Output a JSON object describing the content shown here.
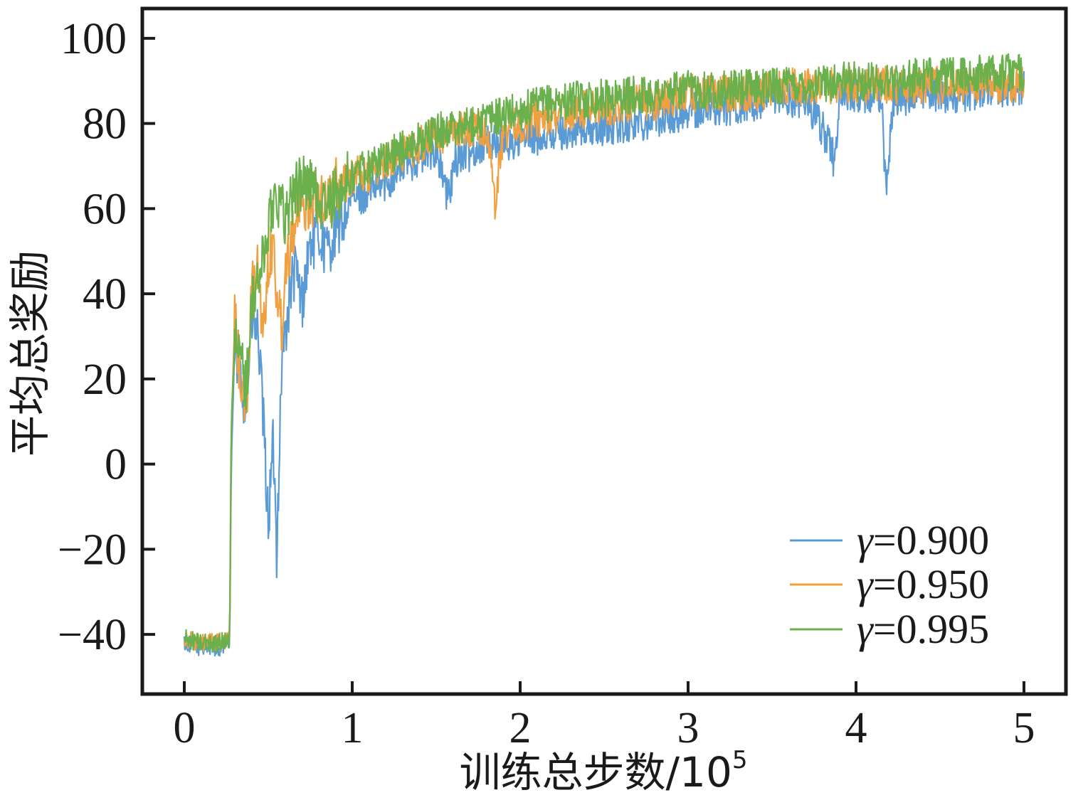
{
  "chart_data": {
    "type": "line",
    "xlabel": "训练总步数/10",
    "xlabel_exponent": "5",
    "ylabel": "平均总奖励",
    "xlim": [
      -0.25,
      5.25
    ],
    "ylim": [
      -54,
      107
    ],
    "x_ticks": [
      0,
      1,
      2,
      3,
      4,
      5
    ],
    "y_ticks": [
      -40,
      -20,
      0,
      20,
      40,
      60,
      80,
      100
    ],
    "x_tick_labels": [
      "0",
      "1",
      "2",
      "3",
      "4",
      "5"
    ],
    "y_tick_labels": [
      "−40",
      "−20",
      "0",
      "20",
      "40",
      "60",
      "80",
      "100"
    ],
    "grid": false,
    "legend_position": "bottom-right",
    "legend_gamma_symbol": "γ",
    "series": [
      {
        "name": "γ=0.900",
        "gamma_value": "=0.900",
        "color": "#5b9bd5",
        "x": [
          0,
          0.1,
          0.2,
          0.27,
          0.28,
          0.3,
          0.33,
          0.37,
          0.4,
          0.44,
          0.47,
          0.5,
          0.53,
          0.55,
          0.58,
          0.6,
          0.63,
          0.66,
          0.7,
          0.75,
          0.8,
          0.85,
          0.92,
          1.0,
          1.1,
          1.2,
          1.3,
          1.4,
          1.5,
          1.57,
          1.62,
          1.7,
          1.8,
          1.9,
          2.0,
          2.2,
          2.5,
          2.8,
          3.0,
          3.3,
          3.5,
          3.7,
          3.85,
          3.87,
          3.9,
          4.0,
          4.15,
          4.18,
          4.22,
          4.4,
          4.6,
          4.8,
          5.0
        ],
        "y": [
          -42,
          -43,
          -43,
          -42,
          0,
          28,
          20,
          14,
          34,
          30,
          10,
          -14,
          5,
          -20,
          24,
          30,
          40,
          46,
          38,
          52,
          54,
          50,
          56,
          62,
          64,
          66,
          70,
          72,
          74,
          62,
          72,
          73,
          76,
          75,
          76,
          78,
          79,
          81,
          83,
          84,
          85,
          86,
          75,
          70,
          86,
          87,
          86,
          63,
          86,
          87,
          87,
          88,
          88
        ]
      },
      {
        "name": "γ=0.950",
        "gamma_value": "=0.950",
        "color": "#f0a040",
        "x": [
          0,
          0.1,
          0.2,
          0.27,
          0.28,
          0.3,
          0.33,
          0.37,
          0.4,
          0.44,
          0.47,
          0.5,
          0.53,
          0.55,
          0.58,
          0.6,
          0.63,
          0.66,
          0.7,
          0.75,
          0.8,
          0.85,
          0.92,
          1.0,
          1.1,
          1.2,
          1.3,
          1.4,
          1.5,
          1.6,
          1.7,
          1.8,
          1.85,
          1.9,
          2.0,
          2.2,
          2.5,
          2.8,
          3.0,
          3.3,
          3.5,
          3.7,
          3.9,
          4.0,
          4.2,
          4.4,
          4.6,
          4.8,
          5.0
        ],
        "y": [
          -41,
          -42,
          -42,
          -41,
          8,
          34,
          22,
          12,
          40,
          46,
          30,
          48,
          52,
          40,
          32,
          46,
          52,
          58,
          60,
          62,
          64,
          62,
          66,
          68,
          68,
          71,
          73,
          75,
          77,
          78,
          79,
          79,
          62,
          78,
          80,
          82,
          84,
          85,
          87,
          87,
          88,
          89,
          89,
          89,
          89,
          89,
          89,
          89,
          89
        ]
      },
      {
        "name": "γ=0.995",
        "gamma_value": "=0.995",
        "color": "#6ab04c",
        "x": [
          0,
          0.1,
          0.2,
          0.27,
          0.28,
          0.3,
          0.33,
          0.37,
          0.4,
          0.44,
          0.47,
          0.5,
          0.53,
          0.55,
          0.58,
          0.6,
          0.63,
          0.66,
          0.7,
          0.75,
          0.8,
          0.85,
          0.92,
          1.0,
          1.1,
          1.2,
          1.3,
          1.4,
          1.5,
          1.6,
          1.7,
          1.8,
          1.9,
          2.0,
          2.2,
          2.5,
          2.8,
          3.0,
          3.3,
          3.5,
          3.7,
          3.9,
          4.0,
          4.2,
          4.4,
          4.6,
          4.8,
          5.0
        ],
        "y": [
          -41,
          -42,
          -42,
          -41,
          10,
          28,
          26,
          18,
          36,
          44,
          48,
          56,
          62,
          64,
          60,
          58,
          62,
          64,
          66,
          66,
          62,
          60,
          64,
          68,
          70,
          72,
          74,
          76,
          78,
          79,
          80,
          81,
          82,
          83,
          85,
          86,
          87,
          88,
          88,
          89,
          89,
          90,
          90,
          90,
          91,
          91,
          92,
          92
        ]
      }
    ]
  }
}
